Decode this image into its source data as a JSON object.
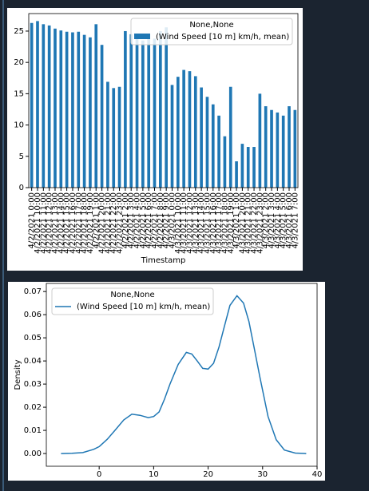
{
  "chart_data": [
    {
      "type": "bar",
      "x_label": "Timestamp",
      "legend_title": "None,None",
      "legend": "upper right",
      "categories": [
        "4/2/2021 0:00",
        "4/2/2021 10:00",
        "4/2/2021 11:00",
        "4/2/2021 12:00",
        "4/2/2021 13:00",
        "4/2/2021 14:00",
        "4/2/2021 15:00",
        "4/2/2021 16:00",
        "4/2/2021 17:00",
        "4/2/2021 18:00",
        "4/2/2021 19:00",
        "4/2/2021 1:00",
        "4/2/2021 20:00",
        "4/2/2021 21:00",
        "4/2/2021 22:00",
        "4/2/2021 23:00",
        "4/2/2021 2:00",
        "4/2/2021 3:00",
        "4/2/2021 4:00",
        "4/2/2021 5:00",
        "4/2/2021 6:00",
        "4/2/2021 7:00",
        "4/2/2021 8:00",
        "4/2/2021 9:00",
        "4/3/2021 0:00",
        "4/3/2021 10:00",
        "4/3/2021 11:00",
        "4/3/2021 12:00",
        "4/3/2021 13:00",
        "4/3/2021 14:00",
        "4/3/2021 15:00",
        "4/3/2021 16:00",
        "4/3/2021 17:00",
        "4/3/2021 18:00",
        "4/3/2021 19:00",
        "4/3/2021 1:00",
        "4/3/2021 20:00",
        "4/3/2021 21:00",
        "4/3/2021 22:00",
        "4/3/2021 23:00",
        "4/3/2021 2:00",
        "4/3/2021 3:00",
        "4/3/2021 4:00",
        "4/3/2021 5:00",
        "4/3/2021 6:00",
        "4/3/2021 7:00"
      ],
      "series": [
        {
          "name": "(Wind Speed [10 m] km/h, mean)",
          "color": "#1f77b4",
          "values": [
            26.3,
            26.6,
            26.1,
            25.9,
            25.4,
            25.1,
            24.9,
            24.8,
            24.9,
            24.4,
            24.0,
            26.1,
            22.8,
            16.9,
            15.9,
            16.1,
            25.0,
            24.5,
            24.0,
            23.5,
            24.2,
            23.8,
            25.0,
            25.6,
            16.4,
            17.7,
            18.8,
            18.6,
            17.8,
            16.0,
            14.5,
            13.3,
            11.5,
            8.2,
            16.1,
            4.2,
            7.0,
            6.5,
            6.5,
            15.0,
            13.0,
            12.4,
            12.0,
            11.5,
            13.0,
            12.4
          ]
        }
      ],
      "ylim": [
        0,
        27.8
      ],
      "yticks": [
        0,
        5,
        10,
        15,
        20,
        25
      ]
    },
    {
      "type": "line",
      "y_label": "Density",
      "legend_title": "None,None",
      "legend": "upper left",
      "x": [
        -7,
        -5,
        -3,
        -1,
        0,
        1.5,
        3,
        4.5,
        6,
        7.5,
        9,
        10,
        11,
        12,
        13,
        14.5,
        16,
        17,
        18,
        19,
        20,
        21,
        22,
        23,
        24,
        25.3,
        26.5,
        27.5,
        28.5,
        29.5,
        31,
        32.5,
        34,
        36,
        38
      ],
      "series": [
        {
          "name": "(Wind Speed [10 m] km/h, mean)",
          "color": "#1f77b4",
          "values": [
            0.0,
            0.0001,
            0.0004,
            0.0018,
            0.003,
            0.0062,
            0.0103,
            0.0145,
            0.017,
            0.0165,
            0.0155,
            0.016,
            0.018,
            0.0235,
            0.03,
            0.0385,
            0.0437,
            0.043,
            0.04,
            0.0368,
            0.0365,
            0.039,
            0.046,
            0.055,
            0.064,
            0.0682,
            0.065,
            0.057,
            0.045,
            0.033,
            0.016,
            0.006,
            0.0015,
            0.0002,
            0.0
          ]
        }
      ],
      "xlim": [
        -9.7,
        40
      ],
      "xticks": [
        0,
        10,
        20,
        30,
        40
      ],
      "ylim": [
        -0.0055,
        0.0735
      ],
      "yticks": [
        {
          "value": 0,
          "label": "0.00"
        },
        0.01,
        0.02,
        0.03,
        0.04,
        0.05,
        0.06,
        0.07
      ]
    }
  ]
}
